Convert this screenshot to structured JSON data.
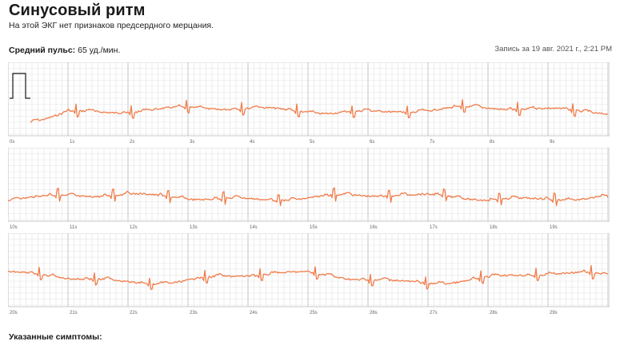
{
  "header": {
    "title": "Синусовый ритм",
    "subtitle": "На этой ЭКГ нет признаков предсердного мерцания.",
    "pulse_label": "Средний пульс:",
    "pulse_value": "65 уд./мин.",
    "recorded": "Запись за 19 авг. 2021 г., 2:21 PM"
  },
  "strips": [
    {
      "labels": [
        "0s",
        "1s",
        "2s",
        "3s",
        "4s",
        "5s",
        "6s",
        "7s",
        "8s",
        "9s"
      ]
    },
    {
      "labels": [
        "10s",
        "11s",
        "12s",
        "13s",
        "14s",
        "15s",
        "16s",
        "17s",
        "18s",
        "19s"
      ]
    },
    {
      "labels": [
        "20s",
        "21s",
        "22s",
        "23s",
        "24s",
        "25s",
        "26s",
        "27s",
        "28s",
        "29s"
      ]
    }
  ],
  "footer": {
    "symptoms_label": "Указанные симптомы:"
  },
  "colors": {
    "trace": "#f07c4a",
    "grid_minor": "#e2e2e2",
    "grid_major": "#bdbdbd",
    "calibration": "#1a1a1a"
  }
}
